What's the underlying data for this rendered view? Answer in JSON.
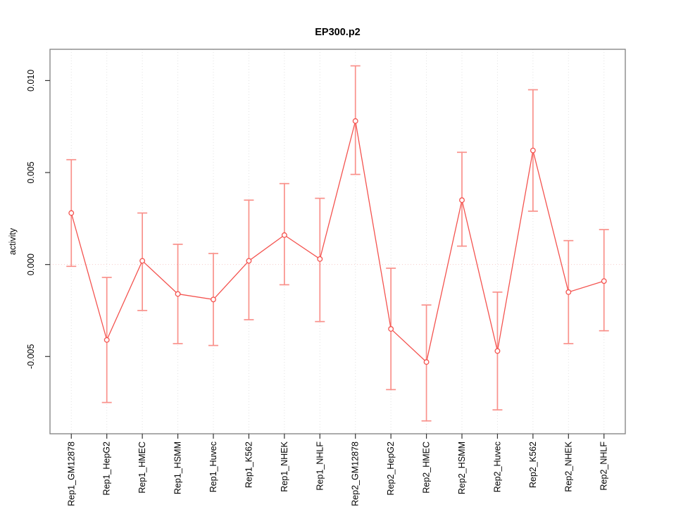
{
  "title": "EP300.p2",
  "chart_data": {
    "type": "line",
    "title": "EP300.p2",
    "xlabel": "",
    "ylabel": "activity",
    "categories": [
      "Rep1_GM12878",
      "Rep1_HepG2",
      "Rep1_HMEC",
      "Rep1_HSMM",
      "Rep1_Huvec",
      "Rep1_K562",
      "Rep1_NHEK",
      "Rep1_NHLF",
      "Rep2_GM12878",
      "Rep2_HepG2",
      "Rep2_HMEC",
      "Rep2_HSMM",
      "Rep2_Huvec",
      "Rep2_K562",
      "Rep2_NHEK",
      "Rep2_NHLF"
    ],
    "series": [
      {
        "name": "activity",
        "values": [
          0.0028,
          -0.0041,
          0.0002,
          -0.0016,
          -0.0019,
          0.0002,
          0.0016,
          0.0003,
          0.0078,
          -0.0035,
          -0.0053,
          0.0035,
          -0.0047,
          0.0062,
          -0.0015,
          -0.0009
        ],
        "upper": [
          0.0057,
          -0.0007,
          0.0028,
          0.0011,
          0.0006,
          0.0035,
          0.0044,
          0.0036,
          0.0108,
          -0.0002,
          -0.0022,
          0.0061,
          -0.0015,
          0.0095,
          0.0013,
          0.0019
        ],
        "lower": [
          -0.0001,
          -0.0075,
          -0.0025,
          -0.0043,
          -0.0044,
          -0.003,
          -0.0011,
          -0.0031,
          0.0049,
          -0.0068,
          -0.0085,
          0.001,
          -0.0079,
          0.0029,
          -0.0043,
          -0.0036
        ]
      }
    ],
    "yticks": [
      -0.005,
      0.0,
      0.005,
      0.01
    ],
    "ytick_labels": [
      "-0.005",
      "0.000",
      "0.005",
      "0.010"
    ],
    "ylim": [
      -0.0092,
      0.0117
    ],
    "grid": "vertical-dotted",
    "zero_line": true,
    "legend": "none",
    "point_style": "open-circle",
    "error_bars": true
  },
  "colors": {
    "line": "#F4534F",
    "error_bar": "#F9918B",
    "zero_line": "#F5CBCA",
    "gridline": "#E2E2E2",
    "box": "#808080",
    "tick": "#333333",
    "text": "#000000",
    "background": "#FFFFFF"
  }
}
